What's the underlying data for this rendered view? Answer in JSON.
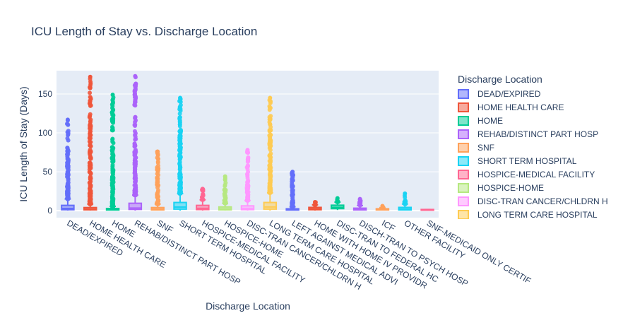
{
  "chart_data": {
    "type": "box",
    "title": "ICU Length of Stay vs. Discharge Location",
    "xlabel": "Discharge Location",
    "ylabel": "ICU Length of Stay (Days)",
    "ylim": [
      -9,
      180
    ],
    "yticks": [
      0,
      50,
      100,
      150
    ],
    "grid": true,
    "legend_title": "Discharge Location",
    "legend_position": "right",
    "categories": [
      "DEAD/EXPIRED",
      "HOME HEALTH CARE",
      "HOME",
      "REHAB/DISTINCT PART HOSP",
      "SNF",
      "SHORT TERM HOSPITAL",
      "HOSPICE-MEDICAL FACILITY",
      "HOSPICE-HOME",
      "DISC-TRAN CANCER/CHLDRN H",
      "LONG TERM CARE HOSPITAL",
      "LEFT AGAINST MEDICAL ADVI",
      "HOME WITH HOME IV PROVIDR",
      "DISC-TRAN TO FEDERAL HC",
      "DISCH-TRAN TO PSYCH HOSP",
      "ICF",
      "OTHER FACILITY",
      "SNF-MEDICAID ONLY CERTIF"
    ],
    "series": [
      {
        "name": "DEAD/EXPIRED",
        "color": "#636efa",
        "min": 0.1,
        "q1": 1.2,
        "median": 2.8,
        "q3": 6.8,
        "upper_fence": 15,
        "max": 117
      },
      {
        "name": "HOME HEALTH CARE",
        "color": "#EF553B",
        "min": 0.1,
        "q1": 1.1,
        "median": 2.0,
        "q3": 4.0,
        "upper_fence": 8.5,
        "max": 172
      },
      {
        "name": "HOME",
        "color": "#00cc96",
        "min": 0.1,
        "q1": 0.9,
        "median": 1.6,
        "q3": 2.8,
        "upper_fence": 5.5,
        "max": 149
      },
      {
        "name": "REHAB/DISTINCT PART HOSP",
        "color": "#ab63fa",
        "min": 0.1,
        "q1": 1.6,
        "median": 3.4,
        "q3": 9.5,
        "upper_fence": 20,
        "max": 173
      },
      {
        "name": "SNF",
        "color": "#FFA15A",
        "min": 0.1,
        "q1": 1.0,
        "median": 1.9,
        "q3": 4.0,
        "upper_fence": 8.5,
        "max": 76
      },
      {
        "name": "SHORT TERM HOSPITAL",
        "color": "#19d3f3",
        "min": 0.1,
        "q1": 2.0,
        "median": 4.6,
        "q3": 10.5,
        "upper_fence": 22,
        "max": 145
      },
      {
        "name": "HOSPICE-MEDICAL FACILITY",
        "color": "#FF6692",
        "min": 0.1,
        "q1": 1.4,
        "median": 3.0,
        "q3": 6.8,
        "upper_fence": 14,
        "max": 28
      },
      {
        "name": "HOSPICE-HOME",
        "color": "#B6E880",
        "min": 0.1,
        "q1": 1.1,
        "median": 2.2,
        "q3": 4.8,
        "upper_fence": 9.5,
        "max": 44
      },
      {
        "name": "DISC-TRAN CANCER/CHLDRN H",
        "color": "#FF97FF",
        "min": 0.1,
        "q1": 1.3,
        "median": 2.6,
        "q3": 6.2,
        "upper_fence": 13,
        "max": 78
      },
      {
        "name": "LONG TERM CARE HOSPITAL",
        "color": "#FECB52",
        "min": 0.1,
        "q1": 2.0,
        "median": 4.8,
        "q3": 10.5,
        "upper_fence": 23,
        "max": 145
      },
      {
        "name": "LEFT AGAINST MEDICAL ADVI",
        "color": "#636efa",
        "min": 0.1,
        "q1": 0.8,
        "median": 1.4,
        "q3": 2.4,
        "upper_fence": 5,
        "max": 50
      },
      {
        "name": "HOME WITH HOME IV PROVIDR",
        "color": "#EF553B",
        "min": 0.1,
        "q1": 1.2,
        "median": 2.3,
        "q3": 4.2,
        "upper_fence": 7.5,
        "max": 11
      },
      {
        "name": "DISC-TRAN TO FEDERAL HC",
        "color": "#00cc96",
        "min": 0.8,
        "q1": 2.6,
        "median": 4.2,
        "q3": 7.0,
        "upper_fence": 11,
        "max": 16
      },
      {
        "name": "DISCH-TRAN TO PSYCH HOSP",
        "color": "#ab63fa",
        "min": 0.1,
        "q1": 1.0,
        "median": 1.8,
        "q3": 3.2,
        "upper_fence": 6.5,
        "max": 15
      },
      {
        "name": "ICF",
        "color": "#FFA15A",
        "min": 0.4,
        "q1": 1.0,
        "median": 1.6,
        "q3": 2.4,
        "upper_fence": 4,
        "max": 6
      },
      {
        "name": "OTHER FACILITY",
        "color": "#19d3f3",
        "min": 0.1,
        "q1": 1.0,
        "median": 2.0,
        "q3": 4.2,
        "upper_fence": 8.5,
        "max": 22
      },
      {
        "name": "SNF-MEDICAID ONLY CERTIF",
        "color": "#FF6692",
        "min": 1.5,
        "q1": 1.5,
        "median": 1.5,
        "q3": 1.5,
        "upper_fence": 1.5,
        "max": 1.5
      }
    ]
  }
}
